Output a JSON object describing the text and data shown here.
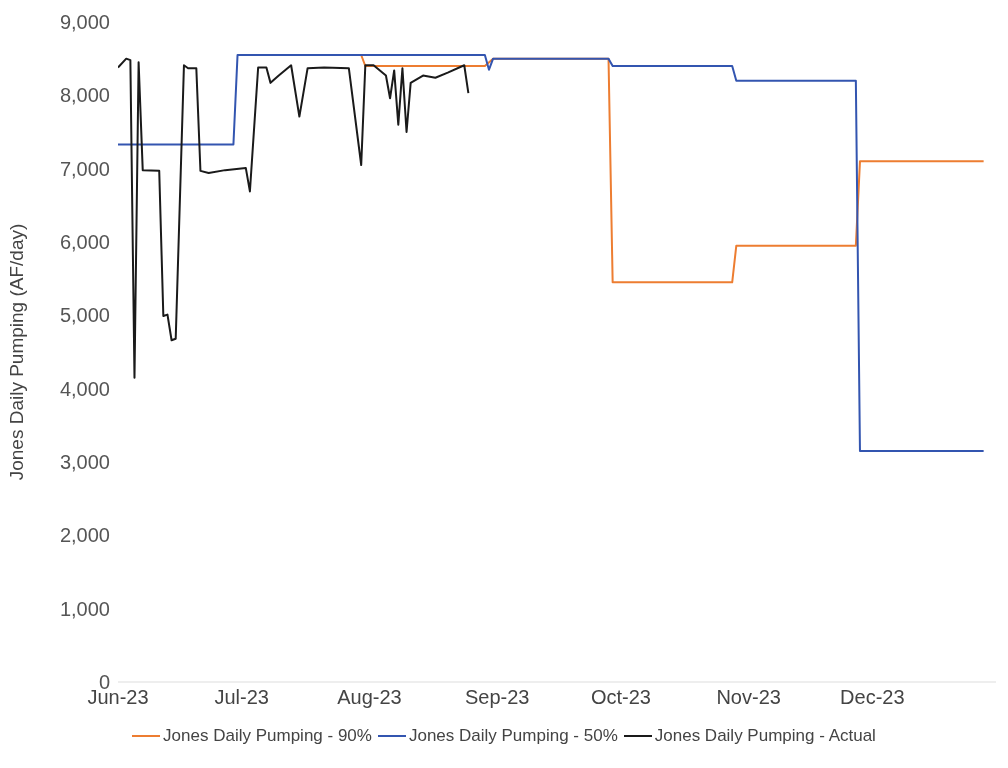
{
  "chart_data": {
    "type": "line",
    "ylabel": "Jones Daily Pumping (AF/day)",
    "xlim": [
      "2023-06-01",
      "2023-12-31"
    ],
    "xticks": [
      {
        "value": "2023-06-01",
        "label": "Jun-23"
      },
      {
        "value": "2023-07-01",
        "label": "Jul-23"
      },
      {
        "value": "2023-08-01",
        "label": "Aug-23"
      },
      {
        "value": "2023-09-01",
        "label": "Sep-23"
      },
      {
        "value": "2023-10-01",
        "label": "Oct-23"
      },
      {
        "value": "2023-11-01",
        "label": "Nov-23"
      },
      {
        "value": "2023-12-01",
        "label": "Dec-23"
      }
    ],
    "ylim": [
      0,
      9000
    ],
    "yticks": [
      0,
      {
        "value": 1000,
        "label": "1,000"
      },
      {
        "value": 2000,
        "label": "2,000"
      },
      {
        "value": 3000,
        "label": "3,000"
      },
      {
        "value": 4000,
        "label": "4,000"
      },
      {
        "value": 5000,
        "label": "5,000"
      },
      {
        "value": 6000,
        "label": "6,000"
      },
      {
        "value": 7000,
        "label": "7,000"
      },
      {
        "value": 8000,
        "label": "8,000"
      },
      {
        "value": 9000,
        "label": "9,000"
      }
    ],
    "grid": false,
    "legend": "bottom",
    "marker": "none",
    "line_style": "solid",
    "series": [
      {
        "name": "Jones Daily Pumping - 90%",
        "color": "#ed7d31",
        "x": [
          "2023-07-30",
          "2023-07-31",
          "2023-08-29",
          "2023-08-31",
          "2023-09-28",
          "2023-09-29",
          "2023-10-28",
          "2023-10-29",
          "2023-11-27",
          "2023-11-28",
          "2023-12-28"
        ],
        "values": [
          8550,
          8400,
          8400,
          8500,
          8500,
          5450,
          5450,
          5950,
          5950,
          7100,
          7100
        ]
      },
      {
        "name": "Jones Daily Pumping - 50%",
        "color": "#3355b0",
        "x": [
          "2023-06-01",
          "2023-06-29",
          "2023-06-30",
          "2023-08-29",
          "2023-08-30",
          "2023-08-31",
          "2023-09-28",
          "2023-09-29",
          "2023-10-28",
          "2023-10-29",
          "2023-11-27",
          "2023-11-28",
          "2023-12-28"
        ],
        "values": [
          7330,
          7330,
          8550,
          8550,
          8350,
          8500,
          8500,
          8400,
          8400,
          8200,
          8200,
          3150,
          3150
        ]
      },
      {
        "name": "Jones Daily Pumping - Actual",
        "color": "#1a1a1a",
        "x": [
          "2023-06-01",
          "2023-06-03",
          "2023-06-04",
          "2023-06-05",
          "2023-06-06",
          "2023-06-07",
          "2023-06-11",
          "2023-06-12",
          "2023-06-13",
          "2023-06-14",
          "2023-06-15",
          "2023-06-17",
          "2023-06-18",
          "2023-06-20",
          "2023-06-21",
          "2023-06-23",
          "2023-06-27",
          "2023-07-02",
          "2023-07-03",
          "2023-07-05",
          "2023-07-07",
          "2023-07-08",
          "2023-07-10",
          "2023-07-13",
          "2023-07-15",
          "2023-07-17",
          "2023-07-21",
          "2023-07-27",
          "2023-07-30",
          "2023-07-31",
          "2023-08-02",
          "2023-08-05",
          "2023-08-06",
          "2023-08-07",
          "2023-08-08",
          "2023-08-09",
          "2023-08-10",
          "2023-08-11",
          "2023-08-14",
          "2023-08-17",
          "2023-08-20",
          "2023-08-24",
          "2023-08-25"
        ],
        "values": [
          8380,
          8500,
          8480,
          4150,
          8450,
          6980,
          6970,
          4990,
          5010,
          4660,
          4680,
          8410,
          8370,
          8370,
          6970,
          6940,
          6980,
          7010,
          6690,
          8380,
          8380,
          8170,
          8270,
          8410,
          7710,
          8370,
          8380,
          8370,
          7050,
          8410,
          8410,
          8270,
          7960,
          8340,
          7600,
          8370,
          7500,
          8170,
          8270,
          8240,
          8310,
          8410,
          8030
        ]
      }
    ]
  }
}
